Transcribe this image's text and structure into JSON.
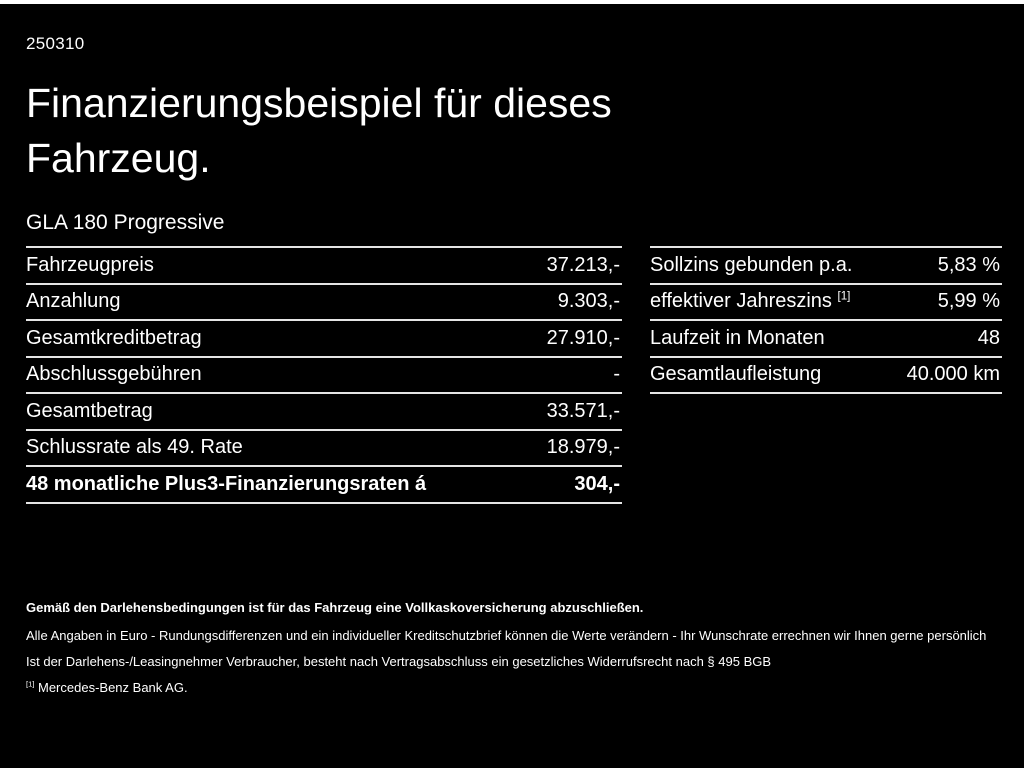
{
  "meta": {
    "code": "250310"
  },
  "colors": {
    "background": "#000000",
    "text": "#ffffff",
    "divider": "#e5e5e5"
  },
  "title": {
    "line1": "Finanzierungsbeispiel für dieses",
    "line2": "Fahrzeug."
  },
  "model": "GLA 180 Progressive",
  "left_table": {
    "rows": [
      {
        "label": "Fahrzeugpreis",
        "value": "37.213,-",
        "bold": false
      },
      {
        "label": "Anzahlung",
        "value": "9.303,-",
        "bold": false
      },
      {
        "label": "Gesamtkreditbetrag",
        "value": "27.910,-",
        "bold": false
      },
      {
        "label": "Abschlussgebühren",
        "value": "-",
        "bold": false
      },
      {
        "label": "Gesamtbetrag",
        "value": "33.571,-",
        "bold": false
      },
      {
        "label": "Schlussrate als 49. Rate",
        "value": "18.979,-",
        "bold": false
      },
      {
        "label": "48 monatliche Plus3-Finanzierungsraten á",
        "value": "304,-",
        "bold": true
      }
    ]
  },
  "right_table": {
    "rows": [
      {
        "label": "Sollzins gebunden p.a.",
        "sup": "",
        "value": "5,83 %"
      },
      {
        "label": "effektiver Jahreszins",
        "sup": "[1]",
        "value": "5,99 %"
      },
      {
        "label": "Laufzeit in Monaten",
        "sup": "",
        "value": "48"
      },
      {
        "label": "Gesamtlaufleistung",
        "sup": "",
        "value": "40.000 km"
      }
    ]
  },
  "footnotes": {
    "line1": "Gemäß den Darlehensbedingungen ist für das Fahrzeug eine Vollkaskoversicherung abzuschließen.",
    "line2": "Alle Angaben in Euro - Rundungsdifferenzen und ein individueller Kreditschutzbrief können die Werte verändern - Ihr Wunschrate errechnen wir Ihnen gerne persönlich",
    "line3": "Ist der Darlehens-/Leasingnehmer Verbraucher, besteht nach Vertragsabschluss ein gesetzliches Widerrufsrecht nach § 495 BGB",
    "line4_marker": "[1]",
    "line4_text": "Mercedes-Benz Bank AG."
  }
}
